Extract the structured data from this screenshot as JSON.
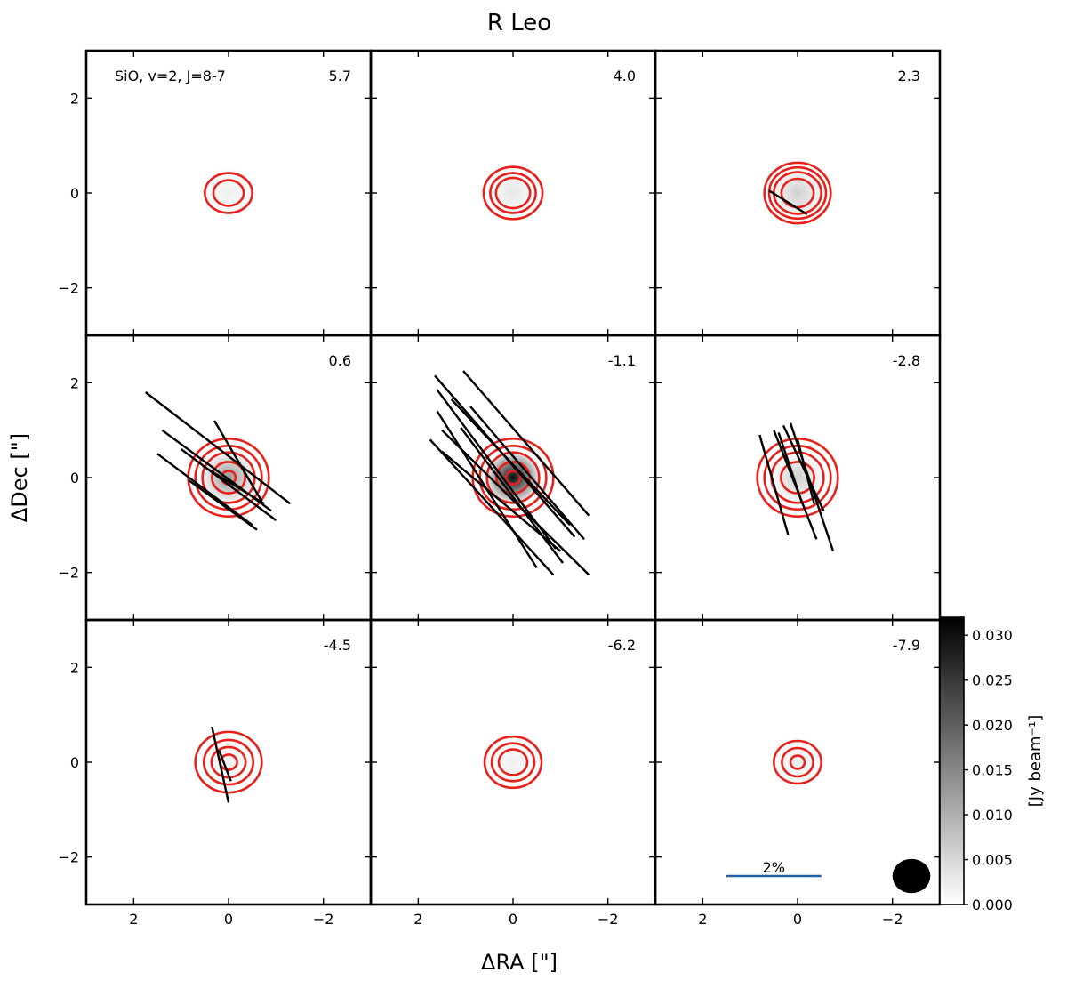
{
  "chart_data": {
    "type": "heatmap",
    "title": "R Leo",
    "xlabel": "ΔRA [\"]",
    "ylabel": "ΔDec [\"]",
    "xlim": [
      3,
      -3
    ],
    "ylim": [
      -3,
      3
    ],
    "x_ticks": [
      {
        "value": 2,
        "label": "2"
      },
      {
        "value": 0,
        "label": "0"
      },
      {
        "value": -2,
        "label": "−2"
      }
    ],
    "y_ticks": [
      {
        "value": 2,
        "label": "2"
      },
      {
        "value": 0,
        "label": "0"
      },
      {
        "value": -2,
        "label": "−2"
      }
    ],
    "line_label": "SiO, v=2, J=8-7",
    "colorbar": {
      "label": "[Jy beam⁻¹]",
      "range": [
        0.0,
        0.032
      ],
      "ticks": [
        "0.000",
        "0.005",
        "0.010",
        "0.015",
        "0.020",
        "0.025",
        "0.030"
      ],
      "tick_values": [
        0.0,
        0.005,
        0.01,
        0.015,
        0.02,
        0.025,
        0.03
      ],
      "colormap": "gray_r"
    },
    "scale_bar": {
      "label": "2%",
      "color": "#1f5fa8",
      "length_arcsec": 2.0
    },
    "beam": {
      "major": 0.8,
      "minor": 0.72,
      "color": "#000000"
    },
    "contour_color": "#e8201b",
    "vector_color": "#000000",
    "channels": [
      {
        "velocity": "5.7",
        "peak": 0.002,
        "contours": [
          {
            "rx": 0.5,
            "ry": 0.42
          },
          {
            "rx": 0.32,
            "ry": 0.27
          }
        ],
        "vectors": []
      },
      {
        "velocity": "4.0",
        "peak": 0.003,
        "contours": [
          {
            "rx": 0.62,
            "ry": 0.55
          },
          {
            "rx": 0.48,
            "ry": 0.42
          },
          {
            "rx": 0.36,
            "ry": 0.32
          }
        ],
        "vectors": []
      },
      {
        "velocity": "2.3",
        "peak": 0.006,
        "contours": [
          {
            "rx": 0.7,
            "ry": 0.64
          },
          {
            "rx": 0.6,
            "ry": 0.54
          },
          {
            "rx": 0.5,
            "ry": 0.44
          },
          {
            "rx": 0.34,
            "ry": 0.3
          }
        ],
        "vectors": [
          {
            "x1": 0.6,
            "y1": 0.05,
            "x2": -0.2,
            "y2": -0.45
          }
        ]
      },
      {
        "velocity": "0.6",
        "peak": 0.013,
        "contours": [
          {
            "rx": 0.85,
            "ry": 0.82
          },
          {
            "rx": 0.7,
            "ry": 0.67
          },
          {
            "rx": 0.55,
            "ry": 0.53
          },
          {
            "rx": 0.35,
            "ry": 0.33
          },
          {
            "rx": 0.15,
            "ry": 0.14
          }
        ],
        "vectors": [
          {
            "x1": 1.75,
            "y1": 1.8,
            "x2": -1.3,
            "y2": -0.55
          },
          {
            "x1": 1.4,
            "y1": 1.0,
            "x2": -0.9,
            "y2": -0.7
          },
          {
            "x1": 1.5,
            "y1": 0.5,
            "x2": -0.5,
            "y2": -1.0
          },
          {
            "x1": 1.0,
            "y1": 0.6,
            "x2": -1.0,
            "y2": -0.9
          },
          {
            "x1": 0.85,
            "y1": -0.05,
            "x2": -0.6,
            "y2": -1.1
          },
          {
            "x1": 0.3,
            "y1": 1.2,
            "x2": -0.7,
            "y2": -0.5
          },
          {
            "x1": 0.55,
            "y1": 0.25,
            "x2": -0.75,
            "y2": -0.55
          }
        ]
      },
      {
        "velocity": "-1.1",
        "peak": 0.031,
        "contours": [
          {
            "rx": 0.85,
            "ry": 0.82
          },
          {
            "rx": 0.7,
            "ry": 0.67
          },
          {
            "rx": 0.55,
            "ry": 0.53
          },
          {
            "rx": 0.35,
            "ry": 0.33
          },
          {
            "rx": 0.15,
            "ry": 0.14
          }
        ],
        "vectors": [
          {
            "x1": 1.65,
            "y1": 2.15,
            "x2": -1.3,
            "y2": -1.25
          },
          {
            "x1": 1.05,
            "y1": 2.25,
            "x2": -1.6,
            "y2": -0.8
          },
          {
            "x1": 1.6,
            "y1": 1.85,
            "x2": -0.9,
            "y2": -1.5
          },
          {
            "x1": 1.6,
            "y1": 1.4,
            "x2": -0.5,
            "y2": -1.9
          },
          {
            "x1": 1.75,
            "y1": 0.8,
            "x2": -0.85,
            "y2": -2.05
          },
          {
            "x1": 1.5,
            "y1": 1.0,
            "x2": -1.6,
            "y2": -2.05
          },
          {
            "x1": 1.3,
            "y1": 1.65,
            "x2": -1.2,
            "y2": -1.0
          },
          {
            "x1": 0.9,
            "y1": 1.5,
            "x2": -1.5,
            "y2": -1.3
          },
          {
            "x1": 1.5,
            "y1": 0.55,
            "x2": -1.0,
            "y2": -1.55
          },
          {
            "x1": 1.1,
            "y1": 1.05,
            "x2": -1.05,
            "y2": -1.8
          }
        ]
      },
      {
        "velocity": "-2.8",
        "peak": 0.006,
        "contours": [
          {
            "rx": 0.85,
            "ry": 0.82
          },
          {
            "rx": 0.7,
            "ry": 0.67
          },
          {
            "rx": 0.55,
            "ry": 0.53
          },
          {
            "rx": 0.35,
            "ry": 0.33
          }
        ],
        "vectors": [
          {
            "x1": 0.8,
            "y1": 0.9,
            "x2": 0.2,
            "y2": -1.2
          },
          {
            "x1": 0.5,
            "y1": 1.0,
            "x2": -0.4,
            "y2": -1.3
          },
          {
            "x1": 0.4,
            "y1": 0.95,
            "x2": -0.1,
            "y2": -0.55
          },
          {
            "x1": 0.3,
            "y1": 1.1,
            "x2": -0.55,
            "y2": -0.7
          },
          {
            "x1": 0.15,
            "y1": 1.15,
            "x2": -0.75,
            "y2": -1.55
          },
          {
            "x1": 0.0,
            "y1": 0.8,
            "x2": -0.35,
            "y2": -0.55
          }
        ]
      },
      {
        "velocity": "-4.5",
        "peak": 0.002,
        "contours": [
          {
            "rx": 0.7,
            "ry": 0.64
          },
          {
            "rx": 0.52,
            "ry": 0.47
          },
          {
            "rx": 0.36,
            "ry": 0.32
          },
          {
            "rx": 0.18,
            "ry": 0.16
          }
        ],
        "vectors": [
          {
            "x1": 0.35,
            "y1": 0.75,
            "x2": 0.0,
            "y2": -0.85
          },
          {
            "x1": 0.2,
            "y1": 0.25,
            "x2": -0.05,
            "y2": -0.4
          }
        ]
      },
      {
        "velocity": "-6.2",
        "peak": 0.002,
        "contours": [
          {
            "rx": 0.6,
            "ry": 0.54
          },
          {
            "rx": 0.45,
            "ry": 0.4
          },
          {
            "rx": 0.3,
            "ry": 0.27
          }
        ],
        "vectors": []
      },
      {
        "velocity": "-7.9",
        "peak": 0.002,
        "contours": [
          {
            "rx": 0.5,
            "ry": 0.45
          },
          {
            "rx": 0.33,
            "ry": 0.3
          },
          {
            "rx": 0.15,
            "ry": 0.14
          }
        ],
        "vectors": []
      }
    ]
  }
}
